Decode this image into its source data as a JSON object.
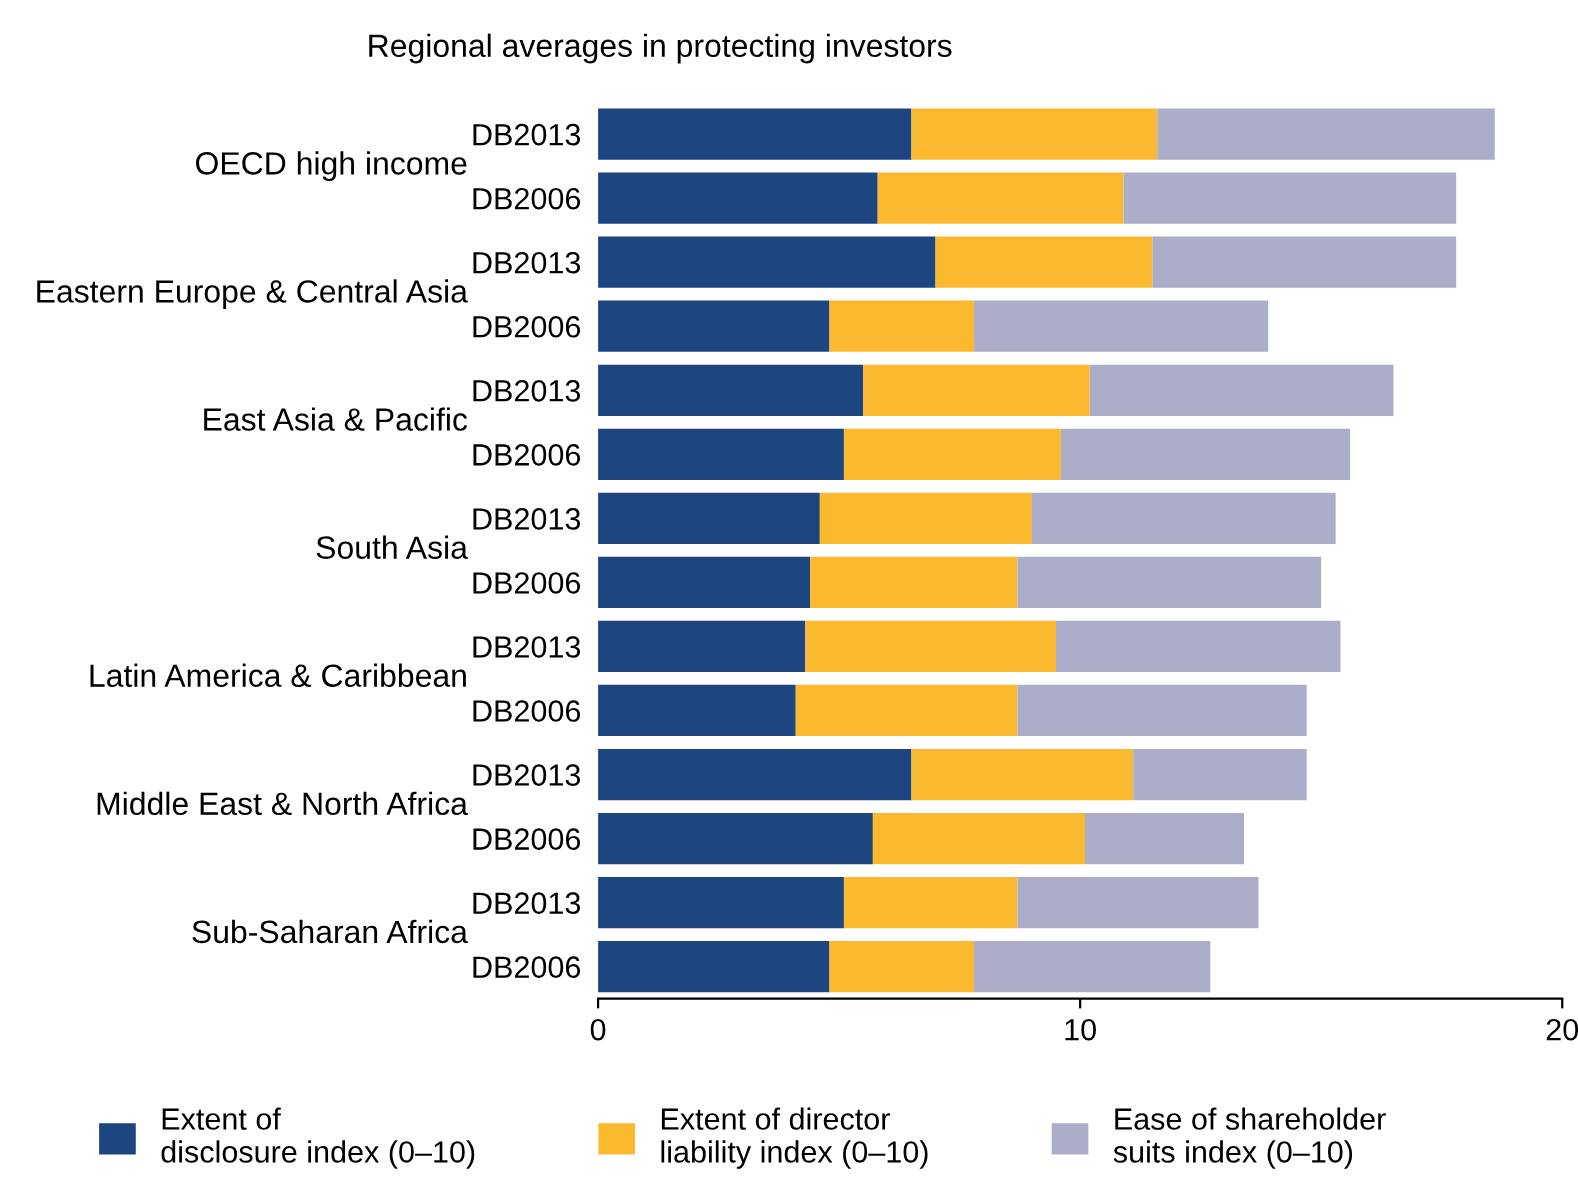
{
  "chart_data": {
    "type": "bar",
    "orientation": "horizontal",
    "stacked": true,
    "title": "Regional averages in protecting investors",
    "categories": [
      "DB2013",
      "DB2006",
      "DB2013",
      "DB2006",
      "DB2013",
      "DB2006",
      "DB2013",
      "DB2006",
      "DB2013",
      "DB2006",
      "DB2013",
      "DB2006",
      "DB2013",
      "DB2006"
    ],
    "annotations": [
      "OECD high income",
      "Eastern Europe & Central Asia",
      "East Asia & Pacific",
      "South Asia",
      "Latin America & Caribbean",
      "Middle East & North Africa",
      "Sub-Saharan Africa"
    ],
    "series": [
      {
        "name": "Extent of\ndisclosure index (0–10)",
        "color": "#1d4580",
        "values": [
          6.5,
          5.8,
          7.0,
          4.8,
          5.5,
          5.1,
          4.6,
          4.4,
          4.3,
          4.1,
          6.5,
          5.7,
          5.1,
          4.8
        ]
      },
      {
        "name": "Extent of director\nliability index (0–10)",
        "color": "#fbb92f",
        "values": [
          5.1,
          5.1,
          4.5,
          3.0,
          4.7,
          4.5,
          4.4,
          4.3,
          5.2,
          4.6,
          4.6,
          4.4,
          3.6,
          3.0
        ]
      },
      {
        "name": "Ease of shareholder\nsuits index (0–10)",
        "color": "#acadc8",
        "values": [
          7.0,
          6.9,
          6.3,
          6.1,
          6.3,
          6.0,
          6.3,
          6.3,
          5.9,
          6.0,
          3.6,
          3.3,
          5.0,
          4.9
        ]
      }
    ],
    "xlim": [
      0,
      20
    ],
    "xticks": [
      0,
      10,
      20
    ],
    "grid": false,
    "legend": "bottom"
  }
}
